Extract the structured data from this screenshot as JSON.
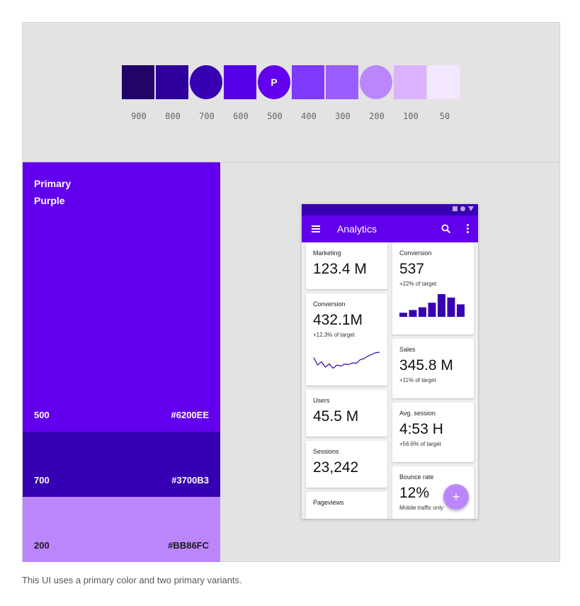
{
  "palette": {
    "swatches": [
      {
        "shade": "900",
        "color": "#23036a",
        "shape": "square",
        "letter": ""
      },
      {
        "shade": "800",
        "color": "#30009c",
        "shape": "square",
        "letter": ""
      },
      {
        "shade": "700",
        "color": "#3700b3",
        "shape": "circle",
        "letter": ""
      },
      {
        "shade": "600",
        "color": "#5600e8",
        "shape": "square",
        "letter": ""
      },
      {
        "shade": "500",
        "color": "#6200ee",
        "shape": "circle",
        "letter": "P"
      },
      {
        "shade": "400",
        "color": "#7f39fb",
        "shape": "square",
        "letter": ""
      },
      {
        "shade": "300",
        "color": "#985eff",
        "shape": "square",
        "letter": ""
      },
      {
        "shade": "200",
        "color": "#bb86fc",
        "shape": "circle",
        "letter": ""
      },
      {
        "shade": "100",
        "color": "#dbb2ff",
        "shape": "square",
        "letter": ""
      },
      {
        "shade": "50",
        "color": "#f2e7fe",
        "shape": "square",
        "letter": ""
      }
    ]
  },
  "variants": {
    "title_line1": "Primary",
    "title_line2": "Purple",
    "items": [
      {
        "code": "500",
        "hex": "#6200EE",
        "color": "#6200ee"
      },
      {
        "code": "700",
        "hex": "#3700B3",
        "color": "#3700b3"
      },
      {
        "code": "200",
        "hex": "#BB86FC",
        "color": "#bb86fc"
      }
    ]
  },
  "phone": {
    "app_title": "Analytics",
    "fab_label": "+",
    "cards": {
      "marketing": {
        "label": "Marketing",
        "value": "123.4 M"
      },
      "conversion_left": {
        "label": "Conversion",
        "value": "432.1M",
        "sub": "+12.3% of target"
      },
      "users": {
        "label": "Users",
        "value": "45.5 M"
      },
      "sessions": {
        "label": "Sessions",
        "value": "23,242"
      },
      "pageviews": {
        "label": "Pageviews"
      },
      "conversion_right": {
        "label": "Conversion",
        "value": "537",
        "sub": "+22% of target"
      },
      "sales": {
        "label": "Sales",
        "value": "345.8 M",
        "sub": "+11% of target"
      },
      "avg_session": {
        "label": "Avg. session",
        "value": "4:53 H",
        "sub": "+56.6% of target"
      },
      "bounce_rate": {
        "label": "Bounce rate",
        "value": "12%",
        "sub": "Mobile traffic only"
      }
    },
    "mini_bars": [
      0.18,
      0.3,
      0.42,
      0.62,
      1.0,
      0.85,
      0.55
    ],
    "sparkline": [
      0.55,
      0.2,
      0.35,
      0.1,
      0.25,
      0.05,
      0.2,
      0.15,
      0.25,
      0.22,
      0.3,
      0.28,
      0.45,
      0.5,
      0.62,
      0.7,
      0.78,
      0.8
    ]
  },
  "caption": "This UI uses a primary color and two primary variants."
}
